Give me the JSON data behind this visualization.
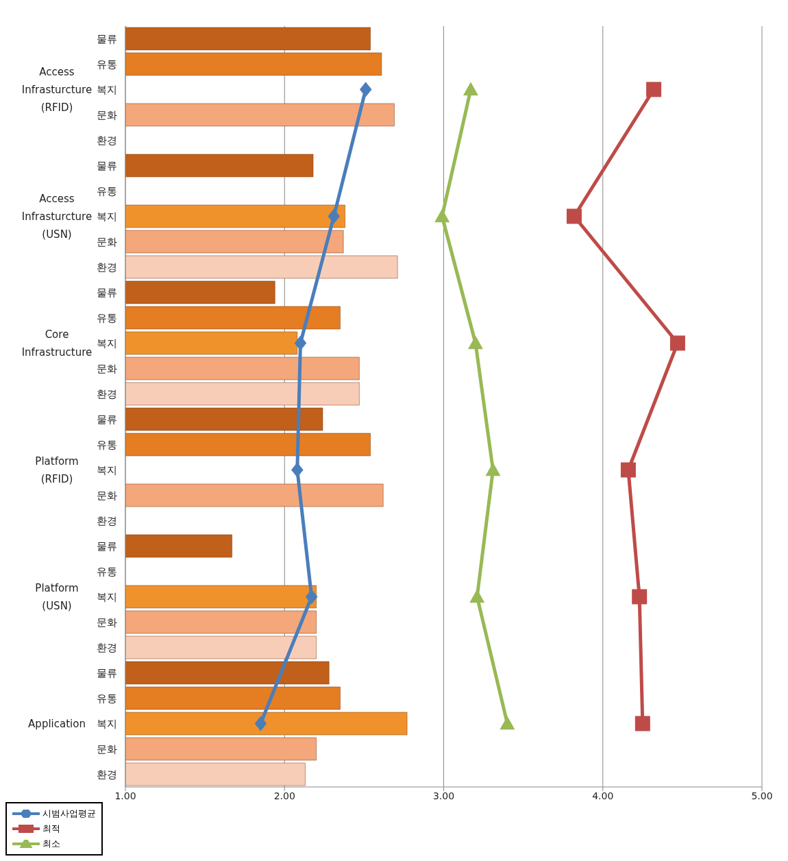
{
  "chart_data": {
    "type": "bar",
    "orientation": "horizontal",
    "categories": [
      "물류",
      "유통",
      "복지",
      "문화",
      "환경",
      "물류",
      "유통",
      "복지",
      "문화",
      "환경",
      "물류",
      "유통",
      "복지",
      "문화",
      "환경",
      "물류",
      "유통",
      "복지",
      "문화",
      "환경",
      "물류",
      "유통",
      "복지",
      "문화",
      "환경",
      "물류",
      "유통",
      "복지",
      "문화",
      "환경"
    ],
    "annotations": [
      "Access Infrasturcture (RFID)",
      "Access Infrasturcture (USN)",
      "Core Infrastructure",
      "Platform (RFID)",
      "Platform (USN)",
      "Application"
    ],
    "series": [
      {
        "values": [
          2.54,
          2.61,
          null,
          2.69,
          null,
          2.18,
          null,
          2.38,
          2.37,
          2.71,
          1.94,
          2.35,
          2.08,
          2.47,
          2.47,
          2.24,
          2.54,
          null,
          2.62,
          null,
          1.67,
          null,
          2.2,
          2.2,
          2.2,
          2.28,
          2.35,
          2.77,
          2.2,
          2.13
        ],
        "colors": [
          "#c0601a",
          "#e57d22",
          "#f0922c",
          "#f4a77a",
          "#f8cdb8",
          "#c0601a",
          "#e57d22",
          "#f0922c",
          "#f4a77a",
          "#f8cdb8",
          "#c0601a",
          "#e57d22",
          "#f0922c",
          "#f4a77a",
          "#f8cdb8",
          "#c0601a",
          "#e57d22",
          "#f0922c",
          "#f4a77a",
          "#f8cdb8",
          "#c0601a",
          "#e57d22",
          "#f0922c",
          "#f4a77a",
          "#f8cdb8",
          "#c0601a",
          "#e57d22",
          "#f0922c",
          "#f4a77a",
          "#f8cdb8"
        ]
      },
      {
        "type": "line",
        "name": "시범사업평균",
        "color": "#4a7ebb",
        "marker": "diamond",
        "values": [
          null,
          null,
          2.51,
          null,
          null,
          null,
          null,
          2.31,
          null,
          null,
          null,
          null,
          2.1,
          null,
          null,
          null,
          null,
          2.08,
          null,
          null,
          null,
          null,
          2.17,
          null,
          null,
          null,
          null,
          1.85,
          null,
          null
        ]
      },
      {
        "type": "line",
        "name": "최적",
        "color": "#be4b48",
        "marker": "square",
        "values": [
          null,
          null,
          4.32,
          null,
          null,
          null,
          null,
          3.82,
          null,
          null,
          null,
          null,
          4.47,
          null,
          null,
          null,
          null,
          4.16,
          null,
          null,
          null,
          null,
          4.23,
          null,
          null,
          null,
          null,
          4.25,
          null,
          null
        ]
      },
      {
        "type": "line",
        "name": "최소",
        "color": "#98b954",
        "marker": "triangle",
        "values": [
          null,
          null,
          3.17,
          null,
          null,
          null,
          null,
          2.99,
          null,
          null,
          null,
          null,
          3.2,
          null,
          null,
          null,
          null,
          3.31,
          null,
          null,
          null,
          null,
          3.21,
          null,
          null,
          null,
          null,
          3.4,
          null,
          null
        ]
      }
    ],
    "xlim": [
      1,
      5
    ],
    "xticks": [
      {
        "value": 1,
        "label": "1.00"
      },
      {
        "value": 2,
        "label": "2.00"
      },
      {
        "value": 3,
        "label": "3.00"
      },
      {
        "value": 4,
        "label": "4.00"
      },
      {
        "value": 5,
        "label": "5.00"
      }
    ],
    "grid": "x",
    "legend": "bottom left"
  }
}
